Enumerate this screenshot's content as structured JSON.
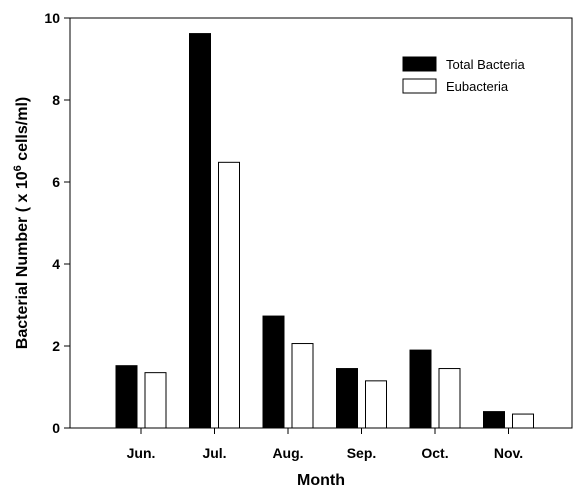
{
  "chart_data": {
    "type": "bar",
    "categories": [
      "Jun.",
      "Jul.",
      "Aug.",
      "Sep.",
      "Oct.",
      "Nov."
    ],
    "series": [
      {
        "name": "Total Bacteria",
        "values": [
          1.52,
          9.62,
          2.73,
          1.45,
          1.9,
          0.4
        ],
        "fill": "#000000"
      },
      {
        "name": "Eubacteria",
        "values": [
          1.35,
          6.48,
          2.06,
          1.15,
          1.45,
          0.34
        ],
        "fill": "#ffffff"
      }
    ],
    "title": "",
    "xlabel": "Month",
    "ylabel_main": "Bacterial Number ( x 10",
    "ylabel_sup": "6",
    "ylabel_tail": " cells/ml)",
    "ylim": [
      0,
      10
    ],
    "yticks": [
      "0",
      "2",
      "4",
      "6",
      "8",
      "10"
    ],
    "grid": false,
    "legend_position": "top-right"
  }
}
